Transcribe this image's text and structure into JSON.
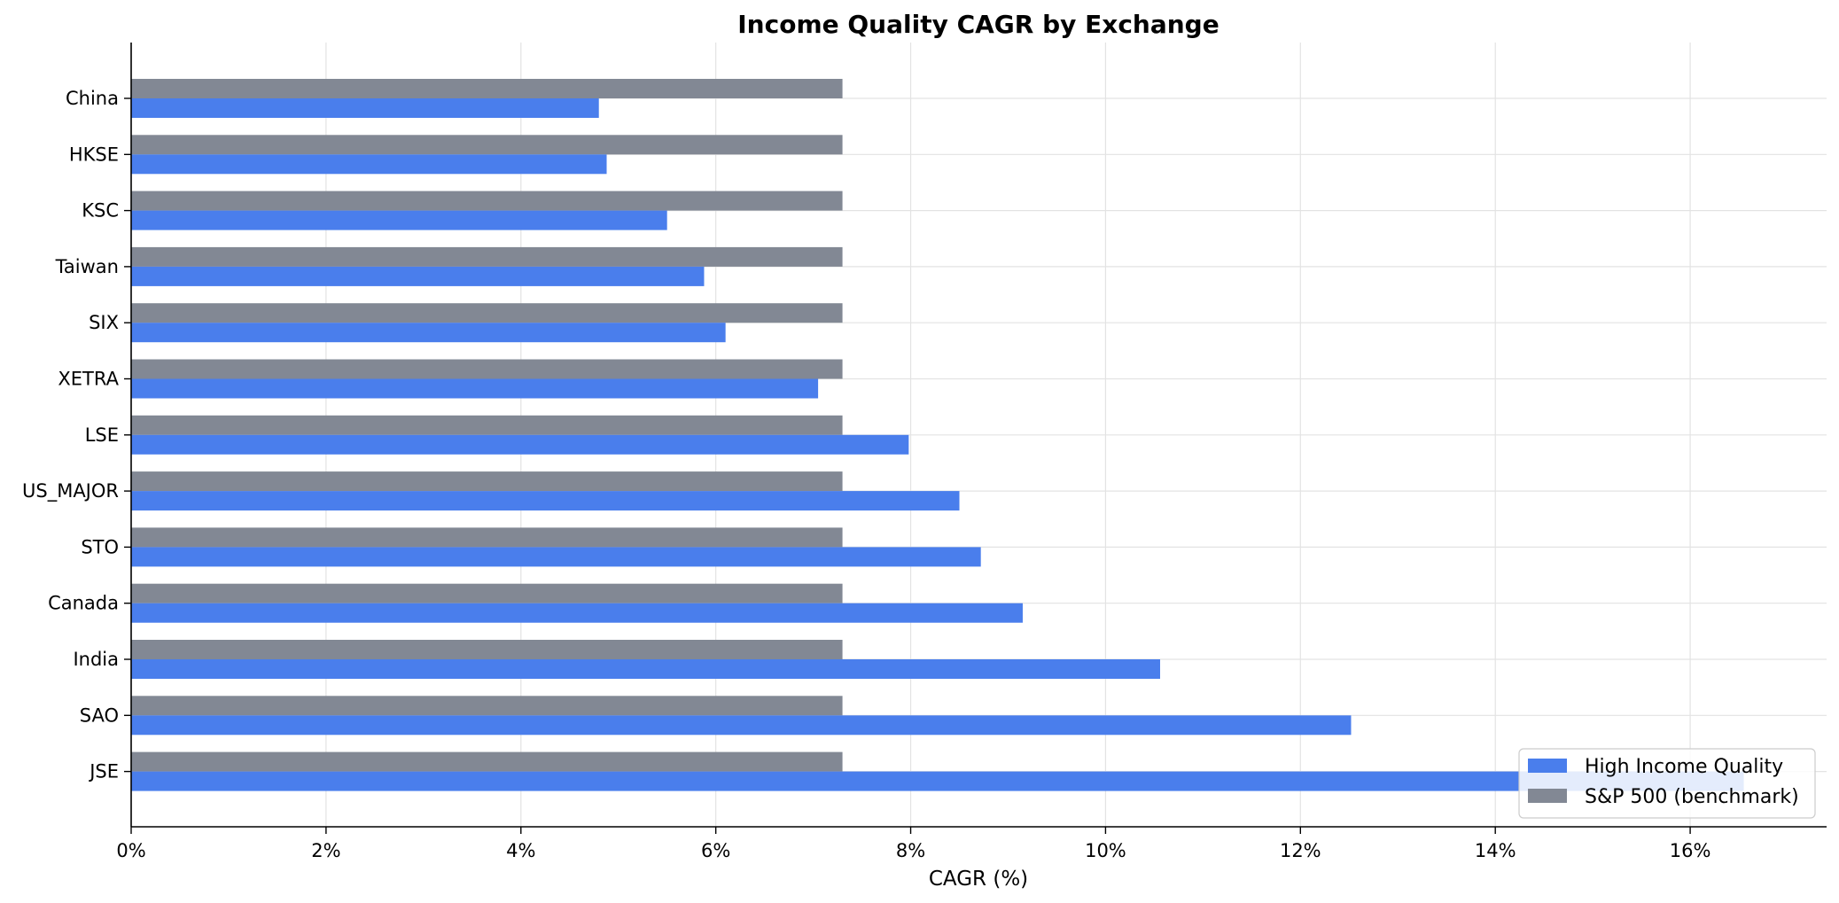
{
  "chart_data": {
    "type": "bar",
    "orientation": "horizontal",
    "title": "Income Quality CAGR by Exchange",
    "xlabel": "CAGR (%)",
    "ylabel": "",
    "xlim": [
      0,
      17.4
    ],
    "x_ticks": [
      0,
      2,
      4,
      6,
      8,
      10,
      12,
      14,
      16
    ],
    "x_tick_labels": [
      "0%",
      "2%",
      "4%",
      "6%",
      "8%",
      "10%",
      "12%",
      "14%",
      "16%"
    ],
    "grid": true,
    "legend_position": "lower-right",
    "categories": [
      "China",
      "HKSE",
      "KSC",
      "Taiwan",
      "SIX",
      "XETRA",
      "LSE",
      "US_MAJOR",
      "STO",
      "Canada",
      "India",
      "SAO",
      "JSE"
    ],
    "series": [
      {
        "name": "High Income Quality",
        "color": "#4a7eec",
        "values": [
          4.8,
          4.88,
          5.5,
          5.88,
          6.1,
          7.05,
          7.98,
          8.5,
          8.72,
          9.15,
          10.56,
          12.52,
          16.55
        ]
      },
      {
        "name": "S&P 500 (benchmark)",
        "color": "#828894",
        "values": [
          7.3,
          7.3,
          7.3,
          7.3,
          7.3,
          7.3,
          7.3,
          7.3,
          7.3,
          7.3,
          7.3,
          7.3,
          7.3
        ]
      }
    ]
  }
}
